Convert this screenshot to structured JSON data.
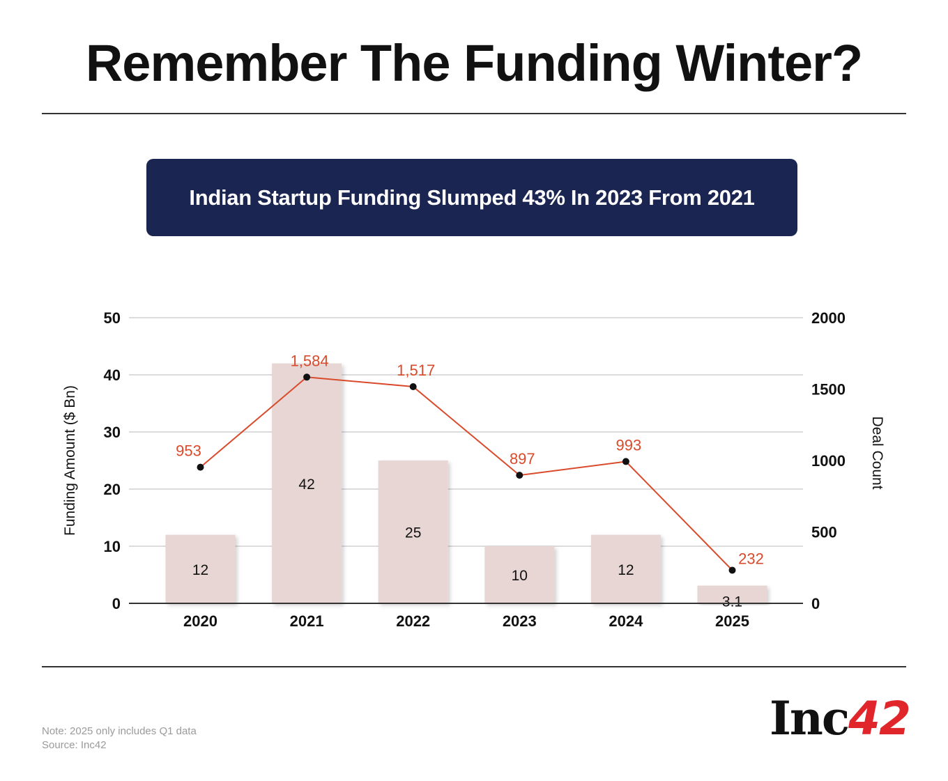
{
  "page": {
    "headline": "Remember The Funding Winter?",
    "banner": "Indian Startup Funding Slumped 43% In 2023 From 2021",
    "note": "Note: 2025 only includes Q1 data",
    "source": "Source: Inc42",
    "logo": {
      "prefix": "Inc",
      "suffix": "42"
    }
  },
  "colors": {
    "bar": "#e7d6d3",
    "line": "#d94a2b",
    "point": "#111111",
    "grid": "#d0d0d0",
    "banner": "#1b2551"
  },
  "chart_data": {
    "type": "bar",
    "categories": [
      "2020",
      "2021",
      "2022",
      "2023",
      "2024",
      "2025"
    ],
    "series": [
      {
        "name": "Funding Amount ($ Bn)",
        "type": "bar",
        "axis": "left",
        "values": [
          12,
          42,
          25,
          10,
          12,
          3.1
        ],
        "labels": [
          "12",
          "42",
          "25",
          "10",
          "12",
          "3.1"
        ]
      },
      {
        "name": "Deal Count",
        "type": "line",
        "axis": "right",
        "values": [
          953,
          1584,
          1517,
          897,
          993,
          232
        ],
        "labels": [
          "953",
          "1,584",
          "1,517",
          "897",
          "993",
          "232"
        ]
      }
    ],
    "ylabel": "Funding Amount ($ Bn)",
    "y2label": "Deal Count",
    "ylim": [
      0,
      50
    ],
    "y2lim": [
      0,
      2000
    ],
    "yticks": [
      0,
      10,
      20,
      30,
      40,
      50
    ],
    "y2ticks": [
      0,
      500,
      1000,
      1500,
      2000
    ],
    "grid": true
  }
}
